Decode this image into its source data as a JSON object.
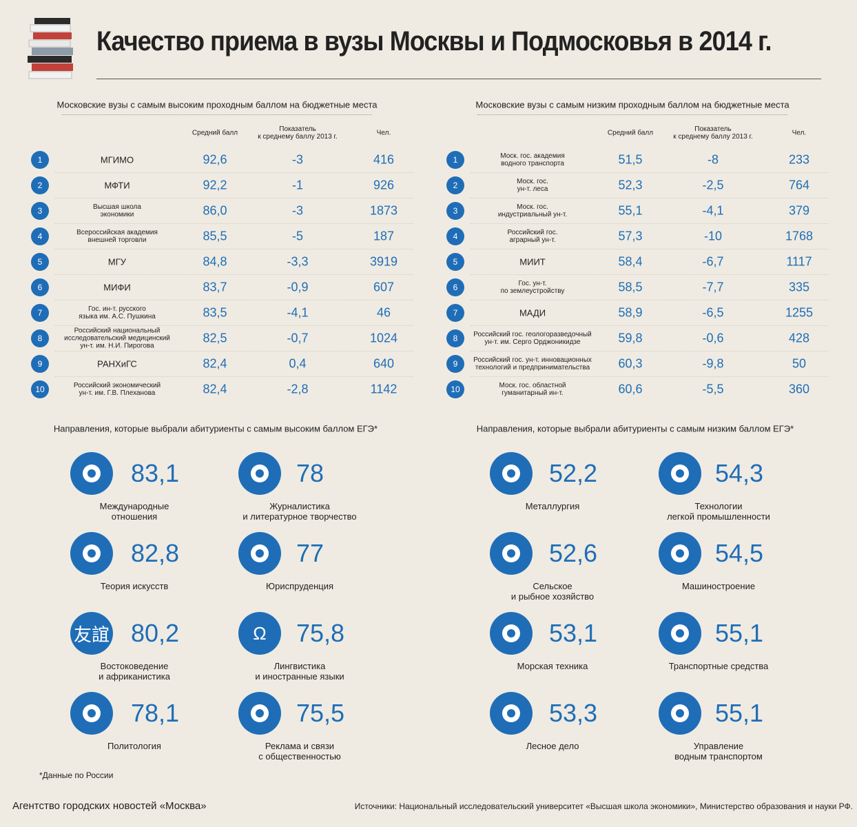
{
  "title": "Качество приема в вузы Москвы и Подмосковья в 2014 г.",
  "tables": [
    {
      "heading": "Московские вузы с самым высоким проходным баллом на бюджетные места",
      "columns": [
        "Средний балл",
        "Показатель\nк среднему баллу 2013 г.",
        "Чел."
      ],
      "rows": [
        [
          "1",
          "МГИМО",
          "92,6",
          "-3",
          "416"
        ],
        [
          "2",
          "МФТИ",
          "92,2",
          "-1",
          "926"
        ],
        [
          "3",
          "Высшая школа\nэкономики",
          "86,0",
          "-3",
          "1873"
        ],
        [
          "4",
          "Всероссийская академия\nвнешней торговли",
          "85,5",
          "-5",
          "187"
        ],
        [
          "5",
          "МГУ",
          "84,8",
          "-3,3",
          "3919"
        ],
        [
          "6",
          "МИФИ",
          "83,7",
          "-0,9",
          "607"
        ],
        [
          "7",
          "Гос. ин-т. русского\nязыка им. А.С. Пушкина",
          "83,5",
          "-4,1",
          "46"
        ],
        [
          "8",
          "Российский национальный\nисследовательский медицинский\nун-т. им. Н.И. Пирогова",
          "82,5",
          "-0,7",
          "1024"
        ],
        [
          "9",
          "РАНХиГС",
          "82,4",
          "0,4",
          "640"
        ],
        [
          "10",
          "Российский экономический\nун-т. им. Г.В. Плеханова",
          "82,4",
          "-2,8",
          "1142"
        ]
      ]
    },
    {
      "heading": "Московские вузы с самым низким проходным баллом на бюджетные места",
      "columns": [
        "Средний балл",
        "Показатель\nк среднему баллу 2013 г.",
        "Чел."
      ],
      "rows": [
        [
          "1",
          "Моск. гос. академия\nводного транспорта",
          "51,5",
          "-8",
          "233"
        ],
        [
          "2",
          "Моск. гос.\nун-т. леса",
          "52,3",
          "-2,5",
          "764"
        ],
        [
          "3",
          "Моск. гос.\nиндустриальный ун-т.",
          "55,1",
          "-4,1",
          "379"
        ],
        [
          "4",
          "Российский гос.\nаграрный ун-т.",
          "57,3",
          "-10",
          "1768"
        ],
        [
          "5",
          "МИИТ",
          "58,4",
          "-6,7",
          "1117"
        ],
        [
          "6",
          "Гос. ун-т.\nпо землеустройству",
          "58,5",
          "-7,7",
          "335"
        ],
        [
          "7",
          "МАДИ",
          "58,9",
          "-6,5",
          "1255"
        ],
        [
          "8",
          "Российский гос. геологоразведочный\nун-т. им. Серго Орджоникидзе",
          "59,8",
          "-0,6",
          "428"
        ],
        [
          "9",
          "Российский гос. ун-т. инновационных\nтехнологий и предпринимательства",
          "60,3",
          "-9,8",
          "50"
        ],
        [
          "10",
          "Моск. гос. областной\nгуманитарный ин-т.",
          "60,6",
          "-5,5",
          "360"
        ]
      ]
    }
  ],
  "directions": [
    {
      "heading": "Направления, которые выбрали абитуриенты с самым высоким баллом ЕГЭ*",
      "items": [
        {
          "value": "83,1",
          "label": "Международные\nотношения"
        },
        {
          "value": "78",
          "label": "Журналистика\nи литературное творчество"
        },
        {
          "value": "82,8",
          "label": "Теория искусств"
        },
        {
          "value": "77",
          "label": "Юриспруденция"
        },
        {
          "value": "80,2",
          "label": "Востоковедение\nи африканистика",
          "icon": "友誼"
        },
        {
          "value": "75,8",
          "label": "Лингвистика\nи иностранные языки",
          "icon": "Ω"
        },
        {
          "value": "78,1",
          "label": "Политология"
        },
        {
          "value": "75,5",
          "label": "Реклама и связи\nс общественностью"
        }
      ]
    },
    {
      "heading": "Направления, которые выбрали абитуриенты с самым низким баллом ЕГЭ*",
      "items": [
        {
          "value": "52,2",
          "label": "Металлургия"
        },
        {
          "value": "54,3",
          "label": "Технологии\nлегкой промышленности"
        },
        {
          "value": "52,6",
          "label": "Сельское\nи рыбное хозяйство"
        },
        {
          "value": "54,5",
          "label": "Машиностроение"
        },
        {
          "value": "53,1",
          "label": "Морская техника"
        },
        {
          "value": "55,1",
          "label": "Транспортные средства"
        },
        {
          "value": "53,3",
          "label": "Лесное дело"
        },
        {
          "value": "55,1",
          "label": "Управление\nводным транспортом"
        }
      ]
    }
  ],
  "footnote": "*Данные по России",
  "agency": "Агентство городских новостей «Москва»",
  "sources": "Источники: Национальный исследовательский университет «Высшая школа экономики», Министерство образования и науки РФ."
}
